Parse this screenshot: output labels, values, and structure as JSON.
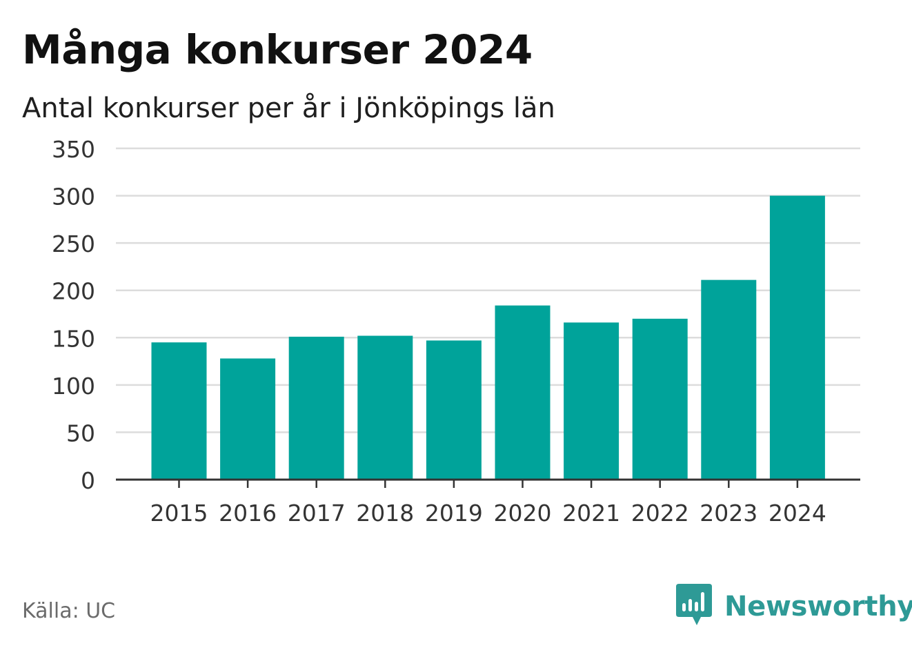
{
  "header": {
    "title": "Många konkurser 2024",
    "subtitle": "Antal konkurser per år i Jönköpings län"
  },
  "footer": {
    "source": "Källa: UC",
    "brand": "Newsworthy",
    "brand_icon": "bar-chart-speech-bubble-icon"
  },
  "colors": {
    "bar": "#00a39a",
    "grid": "#dcdcdc",
    "axis": "#333333",
    "brand": "#2e9a96"
  },
  "chart_data": {
    "type": "bar",
    "categories": [
      "2015",
      "2016",
      "2017",
      "2018",
      "2019",
      "2020",
      "2021",
      "2022",
      "2023",
      "2024"
    ],
    "values": [
      145,
      128,
      151,
      152,
      147,
      184,
      166,
      170,
      211,
      300
    ],
    "ylim": [
      0,
      350
    ],
    "yticks": [
      0,
      50,
      100,
      150,
      200,
      250,
      300,
      350
    ],
    "xlabel": "",
    "ylabel": "",
    "grid": true
  }
}
